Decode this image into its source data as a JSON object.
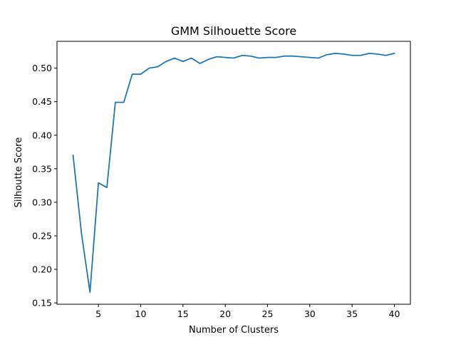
{
  "chart_data": {
    "type": "line",
    "title": "GMM Silhouette Score",
    "xlabel": "Number of Clusters",
    "ylabel": "Silhoutte Score",
    "xlim": [
      0.1,
      41.9
    ],
    "ylim": [
      0.148,
      0.54
    ],
    "xticks": [
      5,
      10,
      15,
      20,
      25,
      30,
      35,
      40
    ],
    "yticks": [
      0.15,
      0.2,
      0.25,
      0.3,
      0.35,
      0.4,
      0.45,
      0.5
    ],
    "ytick_labels": [
      "0.15",
      "0.20",
      "0.25",
      "0.30",
      "0.35",
      "0.40",
      "0.45",
      "0.50"
    ],
    "grid": false,
    "legend": "none",
    "series": [
      {
        "color": "#1f77b4",
        "x": [
          2,
          3,
          4,
          5,
          6,
          7,
          8,
          9,
          10,
          11,
          12,
          13,
          14,
          15,
          16,
          17,
          18,
          19,
          20,
          21,
          22,
          23,
          24,
          25,
          26,
          27,
          28,
          29,
          30,
          31,
          32,
          33,
          34,
          35,
          36,
          37,
          38,
          39,
          40
        ],
        "y": [
          0.37,
          0.253,
          0.166,
          0.329,
          0.322,
          0.449,
          0.449,
          0.491,
          0.491,
          0.5,
          0.502,
          0.51,
          0.515,
          0.51,
          0.515,
          0.507,
          0.513,
          0.517,
          0.516,
          0.515,
          0.519,
          0.518,
          0.515,
          0.516,
          0.516,
          0.518,
          0.518,
          0.517,
          0.516,
          0.515,
          0.52,
          0.522,
          0.521,
          0.519,
          0.519,
          0.522,
          0.521,
          0.519,
          0.522
        ]
      }
    ]
  }
}
